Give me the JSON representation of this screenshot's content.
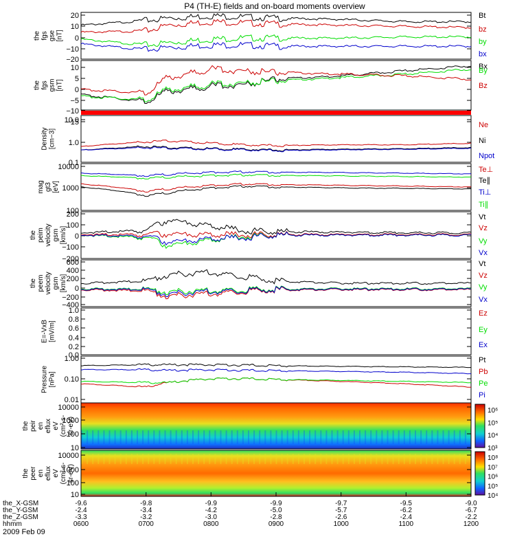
{
  "title": "P4 (TH-E) fields and on-board moments overview",
  "date_label": "2009 Feb 09",
  "colors": {
    "black": "#000000",
    "red": "#cc0000",
    "green": "#00dd00",
    "blue": "#0000cc"
  },
  "colorbars": {
    "ion_ticks": [
      "10⁶",
      "10⁵",
      "10⁴",
      "10³"
    ],
    "electron_ticks": [
      "10⁸",
      "10⁷",
      "10⁶",
      "10⁵",
      "10⁴"
    ]
  },
  "x_axis": {
    "rows": [
      {
        "label": "the_X-GSM",
        "values": [
          "-9.6",
          "-9.8",
          "-9.9",
          "-9.9",
          "-9.7",
          "-9.5",
          "-9.0"
        ]
      },
      {
        "label": "the_Y-GSM",
        "values": [
          "-2.4",
          "-3.4",
          "-4.2",
          "-5.0",
          "-5.7",
          "-6.2",
          "-6.7"
        ]
      },
      {
        "label": "the_Z-GSM",
        "values": [
          "-3.3",
          "-3.2",
          "-3.0",
          "-2.8",
          "-2.6",
          "-2.4",
          "-2.2"
        ]
      },
      {
        "label": "hhmm",
        "values": [
          "0600",
          "0700",
          "0800",
          "0900",
          "1000",
          "1100",
          "1200"
        ]
      }
    ]
  },
  "chart_data": [
    {
      "type": "line",
      "panel": "fgs_gse",
      "ylabel": [
        "the",
        "fgs",
        "gse",
        "[nT]"
      ],
      "ylim": [
        -20,
        20
      ],
      "ticks": [
        "20",
        "10",
        "0",
        "−10",
        "−20"
      ],
      "legend": [
        {
          "name": "Bt",
          "color": "#000000"
        },
        {
          "name": "bz",
          "color": "#cc0000"
        },
        {
          "name": "by",
          "color": "#00dd00"
        },
        {
          "name": "bx",
          "color": "#0000cc"
        }
      ],
      "x": [
        "06:00",
        "07:00",
        "07:20",
        "08:00",
        "08:30",
        "09:00",
        "10:00",
        "11:00",
        "12:00"
      ],
      "series": [
        {
          "name": "Bt",
          "values": [
            9,
            13,
            15,
            17,
            16,
            15,
            14,
            12,
            12
          ]
        },
        {
          "name": "bz",
          "values": [
            3,
            4,
            9,
            12,
            11,
            10,
            9,
            8,
            7
          ]
        },
        {
          "name": "by",
          "values": [
            -3,
            -8,
            -6,
            -3,
            -2,
            -2,
            -2,
            -1,
            -1
          ]
        },
        {
          "name": "bx",
          "values": [
            -7,
            -12,
            -10,
            -8,
            -8,
            -9,
            -9,
            -9,
            -9
          ]
        }
      ]
    },
    {
      "type": "line",
      "panel": "fgs_gsm",
      "ylabel": [
        "the",
        "fgs",
        "gsm",
        "[nT]"
      ],
      "ylim": [
        -17,
        12
      ],
      "ticks": [
        "10",
        "5",
        "0",
        "−5",
        "−10",
        "−15"
      ],
      "legend": [
        {
          "name": "Bx",
          "color": "#000000"
        },
        {
          "name": "By",
          "color": "#00dd00"
        },
        {
          "name": "Bz",
          "color": "#cc0000"
        }
      ],
      "x": [
        "06:00",
        "07:00",
        "07:20",
        "08:00",
        "08:30",
        "09:00",
        "10:00",
        "11:00",
        "12:00"
      ],
      "series": [
        {
          "name": "Bx",
          "values": [
            -8,
            -12,
            -6,
            -3,
            -2,
            1,
            3,
            6,
            9
          ]
        },
        {
          "name": "By",
          "values": [
            -9,
            -11,
            -5,
            -2,
            -1,
            0,
            2,
            4,
            7
          ]
        },
        {
          "name": "Bz",
          "values": [
            -5,
            -7,
            2,
            7,
            6,
            5,
            4,
            3,
            1
          ]
        }
      ]
    },
    {
      "type": "line",
      "panel": "density",
      "yscale": "log",
      "ylabel": [
        "Density",
        "[cm−3]"
      ],
      "ylim": [
        0.1,
        12
      ],
      "ticks": [
        "10.0",
        "1.0",
        "0.1"
      ],
      "legend": [
        {
          "name": "Ne",
          "color": "#cc0000"
        },
        {
          "name": "Ni",
          "color": "#000000"
        },
        {
          "name": "Npot",
          "color": "#0000cc"
        }
      ],
      "x": [
        "06:00",
        "07:00",
        "07:20",
        "08:00",
        "08:30",
        "09:00",
        "10:00",
        "11:00",
        "12:00"
      ],
      "series": [
        {
          "name": "Ne",
          "values": [
            0.5,
            0.8,
            0.9,
            0.7,
            0.6,
            0.55,
            0.6,
            0.6,
            0.7
          ]
        },
        {
          "name": "Ni",
          "values": [
            0.35,
            0.5,
            0.45,
            0.4,
            0.38,
            0.35,
            0.38,
            0.4,
            0.45
          ]
        },
        {
          "name": "Npot",
          "values": [
            0.35,
            0.45,
            0.42,
            0.38,
            0.36,
            0.33,
            0.36,
            0.38,
            0.42
          ]
        }
      ]
    },
    {
      "type": "line",
      "panel": "temperature",
      "yscale": "log",
      "ylabel": [
        "mag",
        "gt3",
        "[eV]"
      ],
      "ylim": [
        100,
        12000
      ],
      "ticks": [
        "10000",
        "1000",
        "100"
      ],
      "legend": [
        {
          "name": "Te⊥",
          "color": "#cc0000"
        },
        {
          "name": "Te∥",
          "color": "#000000"
        },
        {
          "name": "Ti⊥",
          "color": "#0000cc"
        },
        {
          "name": "Ti∥",
          "color": "#00dd00"
        }
      ],
      "x": [
        "06:00",
        "07:00",
        "07:20",
        "08:00",
        "08:30",
        "09:00",
        "10:00",
        "11:00",
        "12:00"
      ],
      "series": [
        {
          "name": "Ti⊥",
          "values": [
            4500,
            3500,
            4000,
            5000,
            5200,
            5000,
            4800,
            4500,
            4200
          ]
        },
        {
          "name": "Ti∥",
          "values": [
            3500,
            2700,
            3000,
            3600,
            3800,
            3600,
            3400,
            3200,
            3000
          ]
        },
        {
          "name": "Te⊥",
          "values": [
            1500,
            700,
            900,
            1300,
            1500,
            1400,
            1300,
            1200,
            1100
          ]
        },
        {
          "name": "Te∥",
          "values": [
            1100,
            450,
            600,
            1000,
            1200,
            1100,
            1000,
            950,
            900
          ]
        }
      ]
    },
    {
      "type": "line",
      "panel": "peim_velocity",
      "ylabel": [
        "the",
        "peim",
        "velocity",
        "gsm",
        "[km/s]"
      ],
      "ylim": [
        -200,
        200
      ],
      "ticks": [
        "200",
        "100",
        "0",
        "−100",
        "−200"
      ],
      "legend": [
        {
          "name": "Vt",
          "color": "#000000"
        },
        {
          "name": "Vz",
          "color": "#cc0000"
        },
        {
          "name": "Vy",
          "color": "#00dd00"
        },
        {
          "name": "Vx",
          "color": "#0000cc"
        }
      ],
      "x": [
        "06:00",
        "07:00",
        "07:20",
        "08:00",
        "08:30",
        "09:00",
        "10:00",
        "11:00",
        "12:00"
      ],
      "series": [
        {
          "name": "Vt",
          "values": [
            20,
            40,
            130,
            80,
            40,
            30,
            25,
            20,
            20
          ]
        },
        {
          "name": "Vz",
          "values": [
            5,
            5,
            10,
            5,
            5,
            5,
            5,
            5,
            5
          ]
        },
        {
          "name": "Vy",
          "values": [
            0,
            -20,
            -90,
            -40,
            -10,
            0,
            0,
            0,
            0
          ]
        },
        {
          "name": "Vx",
          "values": [
            0,
            -10,
            -60,
            -30,
            -20,
            0,
            0,
            0,
            0
          ]
        }
      ]
    },
    {
      "type": "line",
      "panel": "peem_velocity",
      "ylabel": [
        "the",
        "peem",
        "velocity",
        "gsm",
        "[km/s]"
      ],
      "ylim": [
        -450,
        650
      ],
      "ticks": [
        "600",
        "400",
        "200",
        "0",
        "−200",
        "−400"
      ],
      "legend": [
        {
          "name": "Vt",
          "color": "#000000"
        },
        {
          "name": "Vz",
          "color": "#cc0000"
        },
        {
          "name": "Vy",
          "color": "#00dd00"
        },
        {
          "name": "Vx",
          "color": "#0000cc"
        }
      ],
      "x": [
        "06:00",
        "07:00",
        "07:20",
        "08:00",
        "08:30",
        "09:00",
        "10:00",
        "11:00",
        "12:00"
      ],
      "series": [
        {
          "name": "Vt",
          "values": [
            100,
            150,
            300,
            350,
            250,
            150,
            100,
            100,
            100
          ]
        },
        {
          "name": "Vz",
          "values": [
            -50,
            -80,
            -200,
            -150,
            -100,
            -60,
            -50,
            -50,
            -50
          ]
        },
        {
          "name": "Vy",
          "values": [
            -30,
            -40,
            -100,
            -80,
            -60,
            -40,
            -30,
            -30,
            -30
          ]
        },
        {
          "name": "Vx",
          "values": [
            -40,
            -50,
            -150,
            -100,
            -80,
            -50,
            -40,
            -40,
            -40
          ]
        }
      ]
    },
    {
      "type": "line",
      "panel": "efield",
      "ylabel": [
        "E=-VxB",
        "[mV/m]"
      ],
      "ylim": [
        0,
        1
      ],
      "ticks": [
        "1.0",
        "0.8",
        "0.6",
        "0.4",
        "0.2",
        "0.0"
      ],
      "legend": [
        {
          "name": "Ez",
          "color": "#cc0000"
        },
        {
          "name": "Ey",
          "color": "#00dd00"
        },
        {
          "name": "Ex",
          "color": "#0000cc"
        }
      ],
      "series": []
    },
    {
      "type": "line",
      "panel": "pressure",
      "yscale": "log",
      "ylabel": [
        "Pressure",
        "[nPa]"
      ],
      "ylim": [
        0.01,
        1.2
      ],
      "ticks": [
        "1.00",
        "0.10",
        "0.01"
      ],
      "legend": [
        {
          "name": "Pt",
          "color": "#000000"
        },
        {
          "name": "Pb",
          "color": "#cc0000"
        },
        {
          "name": "Pe",
          "color": "#00dd00"
        },
        {
          "name": "Pi",
          "color": "#0000cc"
        }
      ],
      "x": [
        "06:00",
        "07:00",
        "07:20",
        "08:00",
        "08:30",
        "09:00",
        "10:00",
        "11:00",
        "12:00"
      ],
      "series": [
        {
          "name": "Pt",
          "values": [
            0.45,
            0.5,
            0.5,
            0.5,
            0.48,
            0.45,
            0.42,
            0.4,
            0.38
          ]
        },
        {
          "name": "Pi",
          "values": [
            0.3,
            0.3,
            0.28,
            0.3,
            0.28,
            0.27,
            0.25,
            0.23,
            0.2
          ]
        },
        {
          "name": "Pb",
          "values": [
            0.07,
            0.05,
            0.08,
            0.12,
            0.12,
            0.11,
            0.09,
            0.07,
            0.05
          ]
        },
        {
          "name": "Pe",
          "values": [
            0.09,
            0.08,
            0.08,
            0.12,
            0.12,
            0.11,
            0.1,
            0.09,
            0.08
          ]
        }
      ]
    },
    {
      "type": "heatmap",
      "panel": "ion_spectrogram",
      "yscale": "log",
      "ylabel": [
        "the",
        "peir",
        "en",
        "eflux",
        "eV",
        "(cm²-s-",
        "sr-eV)"
      ],
      "ylim": [
        7,
        20000
      ],
      "ticks": [
        "10000",
        "1000",
        "100",
        "10"
      ]
    },
    {
      "type": "heatmap",
      "panel": "electron_spectrogram",
      "yscale": "log",
      "ylabel": [
        "the",
        "peer",
        "en",
        "eflux",
        "eV",
        "(cm²-s-",
        "sr-eV)"
      ],
      "ylim": [
        7,
        25000
      ],
      "ticks": [
        "10000",
        "1000",
        "100",
        "10"
      ]
    }
  ]
}
